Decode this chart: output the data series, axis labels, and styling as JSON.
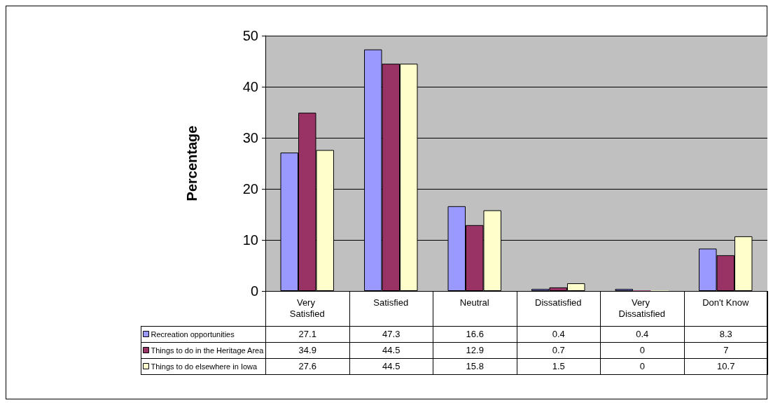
{
  "chart_data": {
    "type": "bar",
    "ylabel": "Percentage",
    "categories": [
      "Very Satisfied",
      "Satisfied",
      "Neutral",
      "Dissatisfied",
      "Very Dissatisfied",
      "Don't Know"
    ],
    "series": [
      {
        "name": "Recreation opportunities",
        "color": "#9999ff",
        "values": [
          27.1,
          47.3,
          16.6,
          0.4,
          0.4,
          8.3
        ]
      },
      {
        "name": "Things to do in the Heritage Area",
        "color": "#993366",
        "values": [
          34.9,
          44.5,
          12.9,
          0.7,
          0,
          7
        ]
      },
      {
        "name": "Things to do elsewhere in Iowa",
        "color": "#ffffcc",
        "values": [
          27.6,
          44.5,
          15.8,
          1.5,
          0,
          10.7
        ]
      }
    ],
    "ylim": [
      0,
      50
    ],
    "yticks": [
      0,
      10,
      20,
      30,
      40,
      50
    ],
    "grid": "y",
    "legend": "bottom left",
    "data_labels": true
  }
}
